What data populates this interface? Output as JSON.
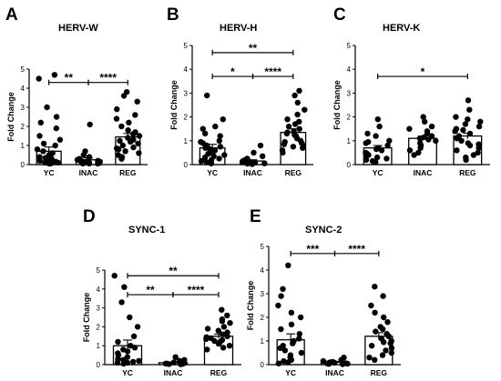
{
  "colors": {
    "bar_edge": "#000000",
    "bar_fill": "#ffffff",
    "point": "#000000"
  },
  "chart_data": [
    {
      "id": "A",
      "type": "bar",
      "panel_label": "A",
      "title": "HERV-W",
      "ylabel": "Fold Change",
      "ylim": [
        0,
        5
      ],
      "yticks": [
        "0",
        "1",
        "2",
        "3",
        "4",
        "5"
      ],
      "categories": [
        "YC",
        "INAC",
        "REG"
      ],
      "values": [
        0.7,
        0.25,
        1.45
      ],
      "sem": [
        0.22,
        0.1,
        0.18
      ],
      "points": [
        [
          4.7,
          4.5,
          3.0,
          2.5,
          2.2,
          1.9,
          1.5,
          1.3,
          1.1,
          1.0,
          0.8,
          0.7,
          0.6,
          0.5,
          0.4,
          0.35,
          0.3,
          0.25,
          0.2,
          0.2,
          0.15,
          0.1,
          0.1,
          0.05,
          0.05
        ],
        [
          2.1,
          0.7,
          0.5,
          0.4,
          0.3,
          0.25,
          0.2,
          0.2,
          0.15,
          0.15,
          0.1,
          0.1,
          0.08,
          0.05,
          0.05,
          0.05
        ],
        [
          3.8,
          3.6,
          3.3,
          2.9,
          2.6,
          2.4,
          2.2,
          2.0,
          1.8,
          1.7,
          1.6,
          1.5,
          1.4,
          1.3,
          1.25,
          1.2,
          1.1,
          1.0,
          0.9,
          0.85,
          0.8,
          0.7,
          0.6,
          0.5,
          0.4,
          0.3
        ]
      ],
      "significance": [
        {
          "from": 0,
          "to": 1,
          "label": "**",
          "y": 4.3
        },
        {
          "from": 1,
          "to": 2,
          "label": "****",
          "y": 4.3
        }
      ]
    },
    {
      "id": "B",
      "type": "bar",
      "panel_label": "B",
      "title": "HERV-H",
      "ylabel": "Fold Change",
      "ylim": [
        0,
        5
      ],
      "yticks": [
        "0",
        "1",
        "2",
        "3",
        "4",
        "5"
      ],
      "categories": [
        "YC",
        "INAC",
        "REG"
      ],
      "values": [
        0.7,
        0.15,
        1.35
      ],
      "sem": [
        0.15,
        0.05,
        0.15
      ],
      "points": [
        [
          2.9,
          1.9,
          1.6,
          1.5,
          1.3,
          1.2,
          1.0,
          0.95,
          0.9,
          0.8,
          0.75,
          0.7,
          0.65,
          0.6,
          0.5,
          0.45,
          0.4,
          0.35,
          0.3,
          0.25,
          0.2,
          0.15,
          0.1,
          0.05
        ],
        [
          0.8,
          0.5,
          0.35,
          0.25,
          0.2,
          0.15,
          0.12,
          0.1,
          0.08,
          0.06,
          0.05,
          0.04,
          0.03,
          0.02
        ],
        [
          3.1,
          2.9,
          2.6,
          2.3,
          2.1,
          1.9,
          1.8,
          1.7,
          1.6,
          1.5,
          1.4,
          1.35,
          1.3,
          1.25,
          1.2,
          1.1,
          1.0,
          0.95,
          0.9,
          0.85,
          0.8,
          0.75,
          0.7,
          0.6,
          0.5
        ]
      ],
      "significance": [
        {
          "from": 0,
          "to": 2,
          "label": "**",
          "y": 4.7
        },
        {
          "from": 0,
          "to": 1,
          "label": "*",
          "y": 3.7
        },
        {
          "from": 1,
          "to": 2,
          "label": "****",
          "y": 3.7
        }
      ]
    },
    {
      "id": "C",
      "type": "bar",
      "panel_label": "C",
      "title": "HERV-K",
      "ylabel": "Fold Change",
      "ylim": [
        0,
        5
      ],
      "yticks": [
        "0",
        "1",
        "2",
        "3",
        "4",
        "5"
      ],
      "categories": [
        "YC",
        "INAC",
        "REG"
      ],
      "values": [
        0.7,
        1.1,
        1.2
      ],
      "sem": [
        0.1,
        0.1,
        0.12
      ],
      "points": [
        [
          1.9,
          1.6,
          1.3,
          1.2,
          1.0,
          0.95,
          0.9,
          0.8,
          0.7,
          0.65,
          0.6,
          0.5,
          0.45,
          0.4,
          0.35,
          0.3,
          0.25,
          0.2,
          0.15,
          0.1
        ],
        [
          2.0,
          1.8,
          1.6,
          1.5,
          1.4,
          1.3,
          1.2,
          1.15,
          1.1,
          1.05,
          1.0,
          0.9,
          0.8,
          0.7,
          0.6,
          0.5,
          0.4
        ],
        [
          2.7,
          2.3,
          2.0,
          1.9,
          1.8,
          1.7,
          1.6,
          1.5,
          1.45,
          1.4,
          1.3,
          1.2,
          1.1,
          1.0,
          0.9,
          0.85,
          0.8,
          0.7,
          0.6,
          0.5,
          0.4,
          0.3,
          0.2
        ]
      ],
      "significance": [
        {
          "from": 0,
          "to": 2,
          "label": "*",
          "y": 3.7
        }
      ]
    },
    {
      "id": "D",
      "type": "bar",
      "panel_label": "D",
      "title": "SYNC-1",
      "ylabel": "Fold Change",
      "ylim": [
        0,
        5
      ],
      "yticks": [
        "0",
        "1",
        "2",
        "3",
        "4",
        "5"
      ],
      "categories": [
        "YC",
        "INAC",
        "REG"
      ],
      "values": [
        1.0,
        0.1,
        1.5
      ],
      "sem": [
        0.3,
        0.04,
        0.12
      ],
      "points": [
        [
          4.7,
          4.1,
          3.3,
          2.5,
          2.0,
          1.5,
          1.2,
          1.0,
          0.9,
          0.8,
          0.7,
          0.6,
          0.5,
          0.4,
          0.3,
          0.25,
          0.2,
          0.15,
          0.1,
          0.1,
          0.05
        ],
        [
          0.4,
          0.25,
          0.2,
          0.15,
          0.12,
          0.1,
          0.08,
          0.06,
          0.05,
          0.04,
          0.03,
          0.02
        ],
        [
          2.9,
          2.6,
          2.4,
          2.3,
          2.2,
          2.0,
          1.9,
          1.8,
          1.7,
          1.6,
          1.5,
          1.45,
          1.4,
          1.35,
          1.3,
          1.25,
          1.2,
          1.1,
          1.0,
          0.9,
          0.8
        ]
      ],
      "significance": [
        {
          "from": 0,
          "to": 2,
          "label": "**",
          "y": 4.7
        },
        {
          "from": 0,
          "to": 1,
          "label": "**",
          "y": 3.7
        },
        {
          "from": 1,
          "to": 2,
          "label": "****",
          "y": 3.7
        }
      ]
    },
    {
      "id": "E",
      "type": "bar",
      "panel_label": "E",
      "title": "SYNC-2",
      "ylabel": "Fold Change",
      "ylim": [
        0,
        5
      ],
      "yticks": [
        "0",
        "1",
        "2",
        "3",
        "4",
        "5"
      ],
      "categories": [
        "YC",
        "INAC",
        "REG"
      ],
      "values": [
        1.05,
        0.1,
        1.2
      ],
      "sem": [
        0.25,
        0.03,
        0.15
      ],
      "points": [
        [
          4.2,
          3.2,
          2.9,
          2.5,
          2.2,
          2.0,
          1.7,
          1.5,
          1.3,
          1.1,
          1.0,
          0.9,
          0.8,
          0.7,
          0.6,
          0.5,
          0.4,
          0.3,
          0.2,
          0.15,
          0.1,
          0.05
        ],
        [
          0.3,
          0.2,
          0.15,
          0.12,
          0.1,
          0.08,
          0.06,
          0.05,
          0.04,
          0.03,
          0.02
        ],
        [
          3.3,
          2.9,
          2.5,
          2.2,
          2.0,
          1.8,
          1.6,
          1.5,
          1.4,
          1.3,
          1.2,
          1.1,
          1.0,
          0.95,
          0.9,
          0.8,
          0.7,
          0.6,
          0.5,
          0.4,
          0.3,
          0.2
        ]
      ],
      "significance": [
        {
          "from": 0,
          "to": 1,
          "label": "***",
          "y": 4.7
        },
        {
          "from": 1,
          "to": 2,
          "label": "****",
          "y": 4.7
        }
      ]
    }
  ]
}
